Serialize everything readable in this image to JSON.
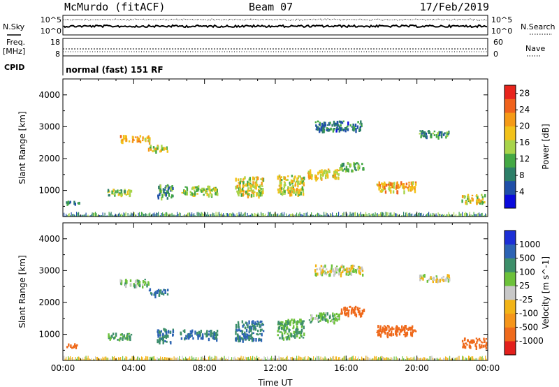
{
  "header": {
    "station": "McMurdo (fitACF)",
    "beam": "Beam 07",
    "date": "17/Feb/2019"
  },
  "status": {
    "nsky_label": "N.Sky",
    "nsearch_label": "N.Search",
    "freq_label_1": "Freq.",
    "freq_label_2": "[MHz]",
    "nave_label": "Nave",
    "cpid_label": "CPID",
    "cpid_value": "normal (fast) 151 RF",
    "noise_axis_top": "10^5",
    "noise_axis_bottom": "10^0",
    "freq_axis_top": "18",
    "freq_axis_bottom": "8",
    "nave_axis_top": "60",
    "nave_axis_bottom": "0"
  },
  "chart_data": [
    {
      "type": "heatmap",
      "title": "",
      "xlabel": "Time UT",
      "ylabel": "Slant Range [km]",
      "x_tick_labels": [
        "00:00",
        "04:00",
        "08:00",
        "12:00",
        "16:00",
        "20:00",
        "00:00"
      ],
      "x_range_hours": [
        0,
        24
      ],
      "y_tick_labels": [
        "1000",
        "2000",
        "3000",
        "4000"
      ],
      "y_range_km": [
        180,
        4500
      ],
      "colorbar": {
        "label": "Power [dB]",
        "tick_labels": [
          "4",
          "8",
          "12",
          "16",
          "20",
          "24",
          "28"
        ],
        "range": [
          0,
          30
        ],
        "colors": [
          "#0a0adc",
          "#1f4fa8",
          "#2d7f68",
          "#44a844",
          "#a8d44a",
          "#f2c21a",
          "#f59a16",
          "#f0621c",
          "#e8241c"
        ]
      },
      "echo_regions": [
        {
          "t": [
            0.1,
            0.9
          ],
          "r": [
            600,
            720
          ],
          "value": 8
        },
        {
          "t": [
            2.5,
            3.9
          ],
          "r": [
            860,
            1060
          ],
          "value": 14
        },
        {
          "t": [
            3.2,
            4.9
          ],
          "r": [
            2550,
            2750
          ],
          "value": 20
        },
        {
          "t": [
            4.8,
            5.9
          ],
          "r": [
            2250,
            2450
          ],
          "value": 16
        },
        {
          "t": [
            5.3,
            6.2
          ],
          "r": [
            780,
            1200
          ],
          "value": 10
        },
        {
          "t": [
            6.6,
            8.7
          ],
          "r": [
            880,
            1160
          ],
          "value": 14
        },
        {
          "t": [
            9.7,
            11.3
          ],
          "r": [
            850,
            1450
          ],
          "value": 17
        },
        {
          "t": [
            12.1,
            13.6
          ],
          "r": [
            900,
            1500
          ],
          "value": 16
        },
        {
          "t": [
            13.8,
            15.6
          ],
          "r": [
            1400,
            1700
          ],
          "value": 18
        },
        {
          "t": [
            14.2,
            16.9
          ],
          "r": [
            2900,
            3200
          ],
          "value": 8
        },
        {
          "t": [
            15.6,
            17.0
          ],
          "r": [
            1650,
            1900
          ],
          "value": 12
        },
        {
          "t": [
            17.7,
            19.9
          ],
          "r": [
            1000,
            1300
          ],
          "value": 20
        },
        {
          "t": [
            20.1,
            21.8
          ],
          "r": [
            2700,
            2900
          ],
          "value": 10
        },
        {
          "t": [
            22.5,
            23.9
          ],
          "r": [
            620,
            900
          ],
          "value": 16
        }
      ],
      "ground_scatter_band_km": [
        190,
        330
      ]
    },
    {
      "type": "heatmap",
      "title": "",
      "xlabel": "Time UT",
      "ylabel": "Slant Range [km]",
      "x_tick_labels": [
        "00:00",
        "04:00",
        "08:00",
        "12:00",
        "16:00",
        "20:00",
        "00:00"
      ],
      "x_range_hours": [
        0,
        24
      ],
      "y_tick_labels": [
        "1000",
        "2000",
        "3000",
        "4000"
      ],
      "y_range_km": [
        180,
        4500
      ],
      "colorbar": {
        "label": "Velocity [m s^-1]",
        "tick_labels": [
          "1000",
          "500",
          "100",
          "25",
          "-25",
          "-100",
          "-500",
          "-1000"
        ],
        "colors": [
          "#1c2fd6",
          "#2c63b4",
          "#3d8f6a",
          "#6cc13a",
          "#c8c8c8",
          "#f2b417",
          "#f5951a",
          "#ef6a1c",
          "#e3201c"
        ]
      },
      "echo_regions": [
        {
          "t": [
            0.1,
            0.9
          ],
          "r": [
            600,
            720
          ],
          "value": -300
        },
        {
          "t": [
            2.5,
            3.9
          ],
          "r": [
            860,
            1060
          ],
          "value": 120
        },
        {
          "t": [
            3.2,
            4.9
          ],
          "r": [
            2550,
            2750
          ],
          "value": 60
        },
        {
          "t": [
            4.8,
            5.9
          ],
          "r": [
            2250,
            2450
          ],
          "value": 300
        },
        {
          "t": [
            5.3,
            6.2
          ],
          "r": [
            780,
            1200
          ],
          "value": 300
        },
        {
          "t": [
            6.6,
            8.7
          ],
          "r": [
            880,
            1160
          ],
          "value": 300
        },
        {
          "t": [
            9.7,
            11.3
          ],
          "r": [
            850,
            1450
          ],
          "value": 300
        },
        {
          "t": [
            12.1,
            13.6
          ],
          "r": [
            900,
            1500
          ],
          "value": 100
        },
        {
          "t": [
            13.8,
            15.6
          ],
          "r": [
            1400,
            1700
          ],
          "value": 60
        },
        {
          "t": [
            14.2,
            16.9
          ],
          "r": [
            2900,
            3200
          ],
          "value": 0
        },
        {
          "t": [
            15.6,
            17.0
          ],
          "r": [
            1650,
            1900
          ],
          "value": -300
        },
        {
          "t": [
            17.7,
            19.9
          ],
          "r": [
            1000,
            1300
          ],
          "value": -300
        },
        {
          "t": [
            20.1,
            21.8
          ],
          "r": [
            2700,
            2900
          ],
          "value": 0
        },
        {
          "t": [
            22.5,
            23.9
          ],
          "r": [
            620,
            900
          ],
          "value": -300
        }
      ],
      "ground_scatter_band_km": [
        190,
        330
      ]
    }
  ]
}
